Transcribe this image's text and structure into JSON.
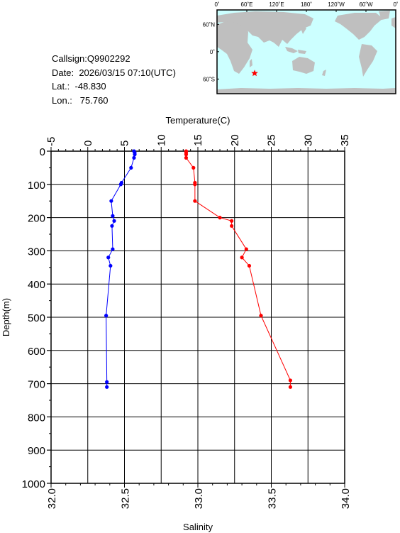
{
  "info": {
    "callsign_label": "Callsign:",
    "callsign": "Q9902292",
    "date_label": "Date:",
    "date": "2026/03/15 07:10(UTC)",
    "lat_label": "Lat.:",
    "lat": "-48.830",
    "lon_label": "Lon.:",
    "lon": "75.760"
  },
  "map": {
    "lon_labels": [
      "0˚",
      "60˚E",
      "120˚E",
      "180˚",
      "120˚W",
      "60˚W",
      "0˚"
    ],
    "lat_labels": [
      "60˚N",
      "0˚",
      "60˚S"
    ],
    "marker": {
      "lon": 75.76,
      "lat": -48.83,
      "color": "#ff0000"
    },
    "ocean_color": "#ccffff",
    "land_color": "#bfbfbf"
  },
  "chart_data": {
    "type": "line",
    "top_axis": {
      "label": "Temperature(C)",
      "range": [
        -5,
        35
      ],
      "ticks": [
        "-5",
        "0",
        "5",
        "10",
        "15",
        "20",
        "25",
        "30",
        "35"
      ]
    },
    "bottom_axis": {
      "label": "Salinity",
      "range": [
        32.0,
        34.0
      ],
      "ticks": [
        "32.0",
        "32.5",
        "33.0",
        "33.5",
        "34.0"
      ]
    },
    "y_axis": {
      "label": "Depth(m)",
      "range": [
        0,
        1000
      ],
      "inverted": true,
      "ticks": [
        "0",
        "100",
        "200",
        "300",
        "400",
        "500",
        "600",
        "700",
        "800",
        "900",
        "1000"
      ]
    },
    "grid": true,
    "series": [
      {
        "axis": "temperature",
        "color": "#0000ff",
        "points": [
          [
            6.3,
            0
          ],
          [
            6.4,
            5
          ],
          [
            6.4,
            10
          ],
          [
            6.3,
            20
          ],
          [
            5.9,
            50
          ],
          [
            4.6,
            95
          ],
          [
            4.5,
            100
          ],
          [
            3.2,
            150
          ],
          [
            3.4,
            195
          ],
          [
            3.6,
            210
          ],
          [
            3.3,
            225
          ],
          [
            3.4,
            295
          ],
          [
            2.8,
            320
          ],
          [
            3.1,
            345
          ],
          [
            2.5,
            495
          ],
          [
            2.6,
            695
          ],
          [
            2.6,
            710
          ]
        ]
      },
      {
        "axis": "salinity",
        "color": "#ff0000",
        "points": [
          [
            32.92,
            0
          ],
          [
            32.92,
            5
          ],
          [
            32.92,
            10
          ],
          [
            32.92,
            20
          ],
          [
            32.97,
            50
          ],
          [
            32.98,
            95
          ],
          [
            32.98,
            100
          ],
          [
            32.98,
            150
          ],
          [
            33.15,
            200
          ],
          [
            33.23,
            210
          ],
          [
            33.23,
            225
          ],
          [
            33.33,
            295
          ],
          [
            33.3,
            320
          ],
          [
            33.35,
            345
          ],
          [
            33.43,
            495
          ],
          [
            33.63,
            690
          ],
          [
            33.63,
            710
          ]
        ]
      }
    ]
  }
}
